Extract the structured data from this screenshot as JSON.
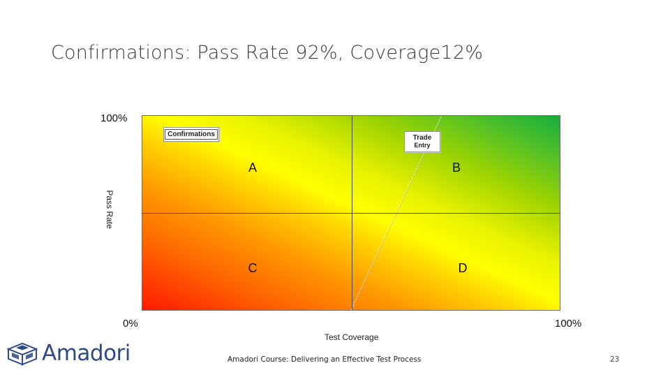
{
  "slide": {
    "title": "Confirmations: Pass Rate 92%, Coverage12%",
    "footer": "Amadori Course: Delivering an Effective Test Process",
    "page_number": "23",
    "logo_text": "Amadori"
  },
  "matrix": {
    "y_axis_label": "Pass Rate",
    "x_axis_label": "Test Coverage",
    "y_top_label": "100%",
    "origin_label": "0%",
    "x_right_label": "100%",
    "quadrants": {
      "a": "A",
      "b": "B",
      "c": "C",
      "d": "D"
    },
    "items": {
      "confirmations": "Confirmations",
      "trade_entry_line1": "Trade",
      "trade_entry_line2": "Entry"
    },
    "colors": {
      "low": "#ff1a00",
      "mid": "#ffff00",
      "high": "#16ad3c"
    }
  }
}
